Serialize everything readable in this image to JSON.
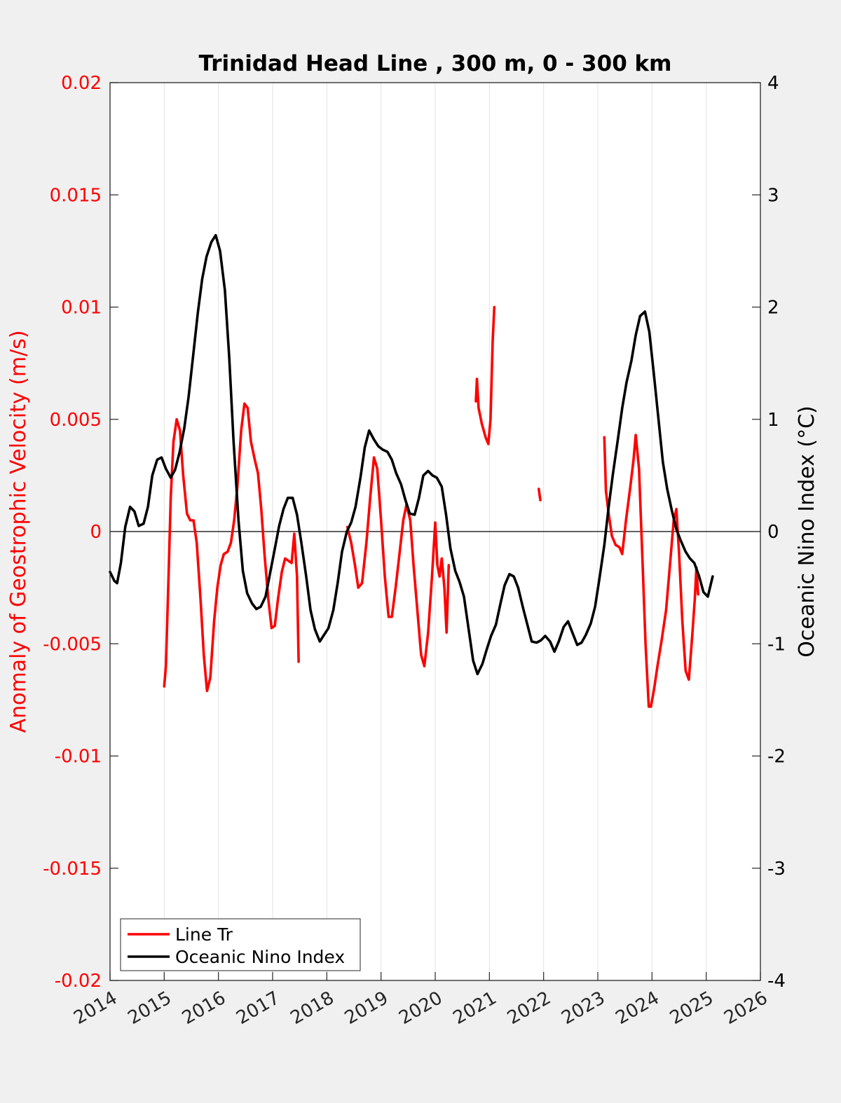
{
  "chart_data": {
    "type": "line",
    "title": "Trinidad Head Line , 300 m, 0 - 300 km",
    "ylabel_left": "Anomaly of Geostrophic Velocity (m/s)",
    "ylabel_right": "Oceanic Nino Index (°C)",
    "xlabel": "",
    "xlim": [
      2014,
      2026
    ],
    "ylim_left": [
      -0.02,
      0.02
    ],
    "ylim_right": [
      -4,
      4
    ],
    "x_ticks": [
      "2014",
      "2015",
      "2016",
      "2017",
      "2018",
      "2019",
      "2020",
      "2021",
      "2022",
      "2023",
      "2024",
      "2025",
      "2026"
    ],
    "y_ticks_left": [
      "0.02",
      "0.015",
      "0.01",
      "0.005",
      "0",
      "-0.005",
      "-0.01",
      "-0.015",
      "-0.02"
    ],
    "y_ticks_right": [
      "4",
      "3",
      "2",
      "1",
      "0",
      "-1",
      "-2",
      "-3",
      "-4"
    ],
    "grid": "vertical",
    "legend_position": "bottom-left",
    "colors": {
      "line_tr": "#ff0000",
      "oni": "#000000",
      "left_axis": "#ff0000",
      "right_axis": "#000000"
    },
    "series": [
      {
        "name": "Line Tr",
        "axis": "left",
        "segments": [
          [
            [
              2015.0,
              -0.0069
            ],
            [
              2015.03,
              -0.006
            ],
            [
              2015.08,
              -0.002
            ],
            [
              2015.12,
              0.0015
            ],
            [
              2015.17,
              0.004
            ],
            [
              2015.23,
              0.005
            ],
            [
              2015.29,
              0.0045
            ],
            [
              2015.35,
              0.0025
            ],
            [
              2015.42,
              0.0008
            ],
            [
              2015.48,
              0.0005
            ],
            [
              2015.54,
              0.0005
            ],
            [
              2015.6,
              -0.0005
            ],
            [
              2015.67,
              -0.003
            ],
            [
              2015.73,
              -0.0055
            ],
            [
              2015.79,
              -0.0071
            ],
            [
              2015.85,
              -0.0065
            ],
            [
              2015.92,
              -0.004
            ],
            [
              2015.98,
              -0.0025
            ],
            [
              2016.04,
              -0.0015
            ],
            [
              2016.1,
              -0.001
            ],
            [
              2016.17,
              -0.0009
            ],
            [
              2016.23,
              -0.0005
            ],
            [
              2016.29,
              0.0005
            ],
            [
              2016.35,
              0.002
            ],
            [
              2016.42,
              0.0045
            ],
            [
              2016.48,
              0.0057
            ],
            [
              2016.54,
              0.0055
            ],
            [
              2016.6,
              0.004
            ],
            [
              2016.67,
              0.0032
            ],
            [
              2016.73,
              0.0026
            ],
            [
              2016.79,
              0.001
            ],
            [
              2016.85,
              -0.001
            ],
            [
              2016.92,
              -0.003
            ],
            [
              2016.98,
              -0.0043
            ],
            [
              2017.04,
              -0.0042
            ],
            [
              2017.1,
              -0.003
            ],
            [
              2017.17,
              -0.0018
            ],
            [
              2017.23,
              -0.0012
            ],
            [
              2017.29,
              -0.0013
            ],
            [
              2017.35,
              -0.0014
            ],
            [
              2017.4,
              -0.0001
            ],
            [
              2017.45,
              -0.002
            ],
            [
              2017.48,
              -0.0058
            ]
          ],
          [
            [
              2018.38,
              0.0002
            ],
            [
              2018.45,
              -0.0005
            ],
            [
              2018.52,
              -0.0015
            ],
            [
              2018.58,
              -0.0025
            ],
            [
              2018.65,
              -0.0023
            ],
            [
              2018.73,
              -0.0005
            ],
            [
              2018.8,
              0.0015
            ],
            [
              2018.87,
              0.0033
            ],
            [
              2018.93,
              0.0028
            ],
            [
              2019.0,
              0.0005
            ],
            [
              2019.07,
              -0.002
            ],
            [
              2019.14,
              -0.0038
            ],
            [
              2019.2,
              -0.0038
            ],
            [
              2019.27,
              -0.0025
            ],
            [
              2019.34,
              -0.001
            ],
            [
              2019.41,
              0.0005
            ],
            [
              2019.47,
              0.0012
            ],
            [
              2019.54,
              0.0005
            ],
            [
              2019.6,
              -0.0015
            ],
            [
              2019.67,
              -0.0035
            ],
            [
              2019.74,
              -0.0055
            ],
            [
              2019.8,
              -0.006
            ],
            [
              2019.87,
              -0.0045
            ],
            [
              2019.94,
              -0.002
            ],
            [
              2020.0,
              0.0004
            ],
            [
              2020.04,
              -0.0015
            ],
            [
              2020.08,
              -0.002
            ],
            [
              2020.12,
              -0.0012
            ],
            [
              2020.17,
              -0.0025
            ],
            [
              2020.21,
              -0.0045
            ],
            [
              2020.25,
              -0.0015
            ]
          ],
          [
            [
              2020.75,
              0.0058
            ],
            [
              2020.77,
              0.0068
            ],
            [
              2020.8,
              0.0055
            ],
            [
              2020.86,
              0.0048
            ],
            [
              2020.93,
              0.0042
            ],
            [
              2020.98,
              0.0039
            ],
            [
              2021.02,
              0.005
            ],
            [
              2021.06,
              0.0085
            ],
            [
              2021.09,
              0.01
            ]
          ],
          [
            [
              2021.91,
              0.0019
            ],
            [
              2021.94,
              0.0014
            ]
          ],
          [
            [
              2023.12,
              0.0042
            ],
            [
              2023.15,
              0.0018
            ],
            [
              2023.2,
              0.0008
            ],
            [
              2023.26,
              -0.0002
            ],
            [
              2023.33,
              -0.0006
            ],
            [
              2023.4,
              -0.0007
            ],
            [
              2023.45,
              -0.001
            ],
            [
              2023.52,
              0.0005
            ],
            [
              2023.6,
              0.002
            ],
            [
              2023.66,
              0.0032
            ],
            [
              2023.7,
              0.0043
            ],
            [
              2023.76,
              0.0028
            ],
            [
              2023.82,
              -0.001
            ],
            [
              2023.88,
              -0.005
            ],
            [
              2023.94,
              -0.0078
            ],
            [
              2023.98,
              -0.0078
            ],
            [
              2024.04,
              -0.007
            ],
            [
              2024.1,
              -0.006
            ],
            [
              2024.18,
              -0.0048
            ],
            [
              2024.26,
              -0.0035
            ],
            [
              2024.33,
              -0.0015
            ],
            [
              2024.4,
              0.0005
            ],
            [
              2024.45,
              0.001
            ],
            [
              2024.5,
              -0.001
            ],
            [
              2024.56,
              -0.004
            ],
            [
              2024.62,
              -0.0062
            ],
            [
              2024.68,
              -0.0066
            ],
            [
              2024.74,
              -0.0047
            ],
            [
              2024.79,
              -0.003
            ],
            [
              2024.82,
              -0.0016
            ],
            [
              2024.85,
              -0.0028
            ]
          ]
        ]
      },
      {
        "name": "Oceanic Nino Index",
        "axis": "right",
        "segments": [
          [
            [
              2014.0,
              -0.36
            ],
            [
              2014.08,
              -0.44
            ],
            [
              2014.13,
              -0.46
            ],
            [
              2014.2,
              -0.28
            ],
            [
              2014.28,
              0.04
            ],
            [
              2014.37,
              0.22
            ],
            [
              2014.45,
              0.18
            ],
            [
              2014.53,
              0.05
            ],
            [
              2014.62,
              0.07
            ],
            [
              2014.7,
              0.22
            ],
            [
              2014.78,
              0.5
            ],
            [
              2014.87,
              0.64
            ],
            [
              2014.95,
              0.66
            ],
            [
              2015.03,
              0.56
            ],
            [
              2015.12,
              0.48
            ],
            [
              2015.2,
              0.55
            ],
            [
              2015.28,
              0.7
            ],
            [
              2015.37,
              0.92
            ],
            [
              2015.45,
              1.2
            ],
            [
              2015.53,
              1.55
            ],
            [
              2015.62,
              1.95
            ],
            [
              2015.7,
              2.25
            ],
            [
              2015.78,
              2.45
            ],
            [
              2015.87,
              2.58
            ],
            [
              2015.95,
              2.64
            ],
            [
              2016.03,
              2.5
            ],
            [
              2016.12,
              2.15
            ],
            [
              2016.2,
              1.55
            ],
            [
              2016.28,
              0.8
            ],
            [
              2016.37,
              0.1
            ],
            [
              2016.45,
              -0.35
            ],
            [
              2016.53,
              -0.55
            ],
            [
              2016.62,
              -0.64
            ],
            [
              2016.7,
              -0.69
            ],
            [
              2016.78,
              -0.67
            ],
            [
              2016.87,
              -0.58
            ],
            [
              2016.95,
              -0.38
            ],
            [
              2017.03,
              -0.18
            ],
            [
              2017.12,
              0.05
            ],
            [
              2017.2,
              0.2
            ],
            [
              2017.28,
              0.3
            ],
            [
              2017.37,
              0.3
            ],
            [
              2017.45,
              0.15
            ],
            [
              2017.53,
              -0.1
            ],
            [
              2017.62,
              -0.4
            ],
            [
              2017.7,
              -0.7
            ],
            [
              2017.78,
              -0.87
            ],
            [
              2017.87,
              -0.98
            ],
            [
              2017.95,
              -0.92
            ],
            [
              2018.03,
              -0.86
            ],
            [
              2018.12,
              -0.7
            ],
            [
              2018.2,
              -0.46
            ],
            [
              2018.28,
              -0.18
            ],
            [
              2018.37,
              0.0
            ],
            [
              2018.45,
              0.08
            ],
            [
              2018.53,
              0.22
            ],
            [
              2018.62,
              0.48
            ],
            [
              2018.7,
              0.75
            ],
            [
              2018.78,
              0.9
            ],
            [
              2018.87,
              0.82
            ],
            [
              2018.95,
              0.76
            ],
            [
              2019.03,
              0.73
            ],
            [
              2019.12,
              0.71
            ],
            [
              2019.2,
              0.64
            ],
            [
              2019.28,
              0.52
            ],
            [
              2019.37,
              0.42
            ],
            [
              2019.45,
              0.28
            ],
            [
              2019.53,
              0.16
            ],
            [
              2019.62,
              0.15
            ],
            [
              2019.7,
              0.3
            ],
            [
              2019.78,
              0.5
            ],
            [
              2019.87,
              0.54
            ],
            [
              2019.95,
              0.5
            ],
            [
              2020.03,
              0.48
            ],
            [
              2020.12,
              0.4
            ],
            [
              2020.2,
              0.15
            ],
            [
              2020.28,
              -0.15
            ],
            [
              2020.37,
              -0.35
            ],
            [
              2020.45,
              -0.45
            ],
            [
              2020.53,
              -0.58
            ],
            [
              2020.62,
              -0.88
            ],
            [
              2020.7,
              -1.15
            ],
            [
              2020.78,
              -1.27
            ],
            [
              2020.87,
              -1.18
            ],
            [
              2020.95,
              -1.05
            ],
            [
              2021.03,
              -0.93
            ],
            [
              2021.12,
              -0.83
            ],
            [
              2021.2,
              -0.65
            ],
            [
              2021.28,
              -0.48
            ],
            [
              2021.37,
              -0.38
            ],
            [
              2021.45,
              -0.4
            ],
            [
              2021.53,
              -0.5
            ],
            [
              2021.62,
              -0.68
            ],
            [
              2021.7,
              -0.83
            ],
            [
              2021.78,
              -0.98
            ],
            [
              2021.87,
              -0.99
            ],
            [
              2021.95,
              -0.97
            ],
            [
              2022.03,
              -0.93
            ],
            [
              2022.12,
              -0.98
            ],
            [
              2022.2,
              -1.07
            ],
            [
              2022.28,
              -0.98
            ],
            [
              2022.37,
              -0.85
            ],
            [
              2022.45,
              -0.8
            ],
            [
              2022.53,
              -0.9
            ],
            [
              2022.62,
              -1.01
            ],
            [
              2022.7,
              -0.99
            ],
            [
              2022.78,
              -0.92
            ],
            [
              2022.87,
              -0.82
            ],
            [
              2022.95,
              -0.67
            ],
            [
              2023.03,
              -0.42
            ],
            [
              2023.12,
              -0.12
            ],
            [
              2023.2,
              0.22
            ],
            [
              2023.28,
              0.52
            ],
            [
              2023.37,
              0.82
            ],
            [
              2023.45,
              1.1
            ],
            [
              2023.53,
              1.33
            ],
            [
              2023.62,
              1.52
            ],
            [
              2023.7,
              1.75
            ],
            [
              2023.78,
              1.92
            ],
            [
              2023.87,
              1.96
            ],
            [
              2023.95,
              1.78
            ],
            [
              2024.03,
              1.42
            ],
            [
              2024.12,
              1.0
            ],
            [
              2024.2,
              0.62
            ],
            [
              2024.28,
              0.38
            ],
            [
              2024.37,
              0.18
            ],
            [
              2024.45,
              0.02
            ],
            [
              2024.53,
              -0.08
            ],
            [
              2024.62,
              -0.18
            ],
            [
              2024.7,
              -0.24
            ],
            [
              2024.78,
              -0.28
            ],
            [
              2024.87,
              -0.4
            ],
            [
              2024.95,
              -0.54
            ],
            [
              2025.03,
              -0.58
            ],
            [
              2025.12,
              -0.4
            ]
          ]
        ]
      }
    ]
  }
}
